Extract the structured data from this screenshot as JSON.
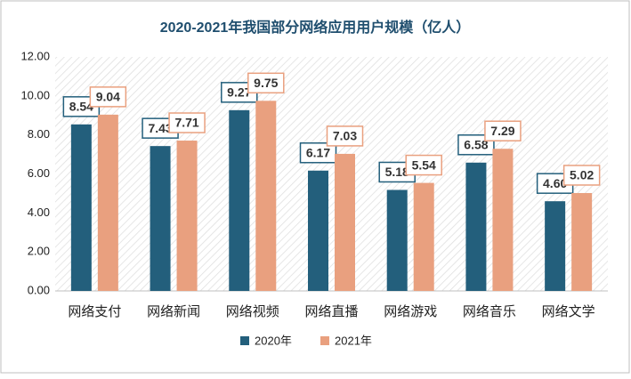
{
  "chart_data": {
    "type": "bar",
    "title": "2020-2021年我国部分网络应用用户规模（亿人）",
    "categories": [
      "网络支付",
      "网络新闻",
      "网络视频",
      "网络直播",
      "网络游戏",
      "网络音乐",
      "网络文学"
    ],
    "series": [
      {
        "name": "2020年",
        "color": "#235f7c",
        "values": [
          8.54,
          7.43,
          9.27,
          6.17,
          5.18,
          6.58,
          4.6
        ],
        "value_labels": [
          "8.54",
          "7.43",
          "9.27",
          "6.17",
          "5.18",
          "6.58",
          "4.60"
        ]
      },
      {
        "name": "2021年",
        "color": "#e9a07f",
        "values": [
          9.04,
          7.71,
          9.75,
          7.03,
          5.54,
          7.29,
          5.02
        ],
        "value_labels": [
          "9.04",
          "7.71",
          "9.75",
          "7.03",
          "5.54",
          "7.29",
          "5.02"
        ]
      }
    ],
    "ylim": [
      0,
      12
    ],
    "yticks": [
      {
        "value": 0,
        "label": "0.00"
      },
      {
        "value": 2,
        "label": "2.00"
      },
      {
        "value": 4,
        "label": "4.00"
      },
      {
        "value": 6,
        "label": "6.00"
      },
      {
        "value": 8,
        "label": "8.00"
      },
      {
        "value": 10,
        "label": "10.00"
      },
      {
        "value": 12,
        "label": "12.00"
      }
    ],
    "grid": false,
    "legend": "bottom"
  }
}
